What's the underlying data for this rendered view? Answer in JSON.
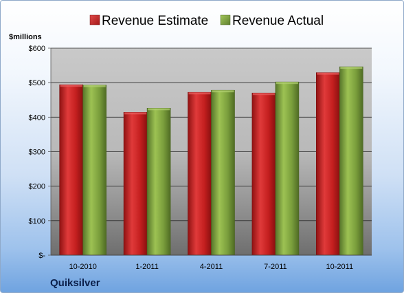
{
  "chart_data": {
    "type": "bar",
    "title": "",
    "unit_label": "$millions",
    "company": "Quiksilver",
    "categories": [
      "10-2010",
      "1-2011",
      "4-2011",
      "7-2011",
      "10-2011"
    ],
    "series": [
      {
        "name": "Revenue Estimate",
        "values": [
          494,
          414,
          472,
          470,
          529
        ],
        "color": "#cc2222"
      },
      {
        "name": "Revenue Actual",
        "values": [
          493,
          426,
          478,
          502,
          546
        ],
        "color": "#7a9e3c"
      }
    ],
    "ylim": [
      0,
      600
    ],
    "yticks": [
      0,
      100,
      200,
      300,
      400,
      500,
      600
    ],
    "ytick_labels": [
      "$-",
      "$100",
      "$200",
      "$300",
      "$400",
      "$500",
      "$600"
    ],
    "legend_position": "top",
    "grid": true
  }
}
